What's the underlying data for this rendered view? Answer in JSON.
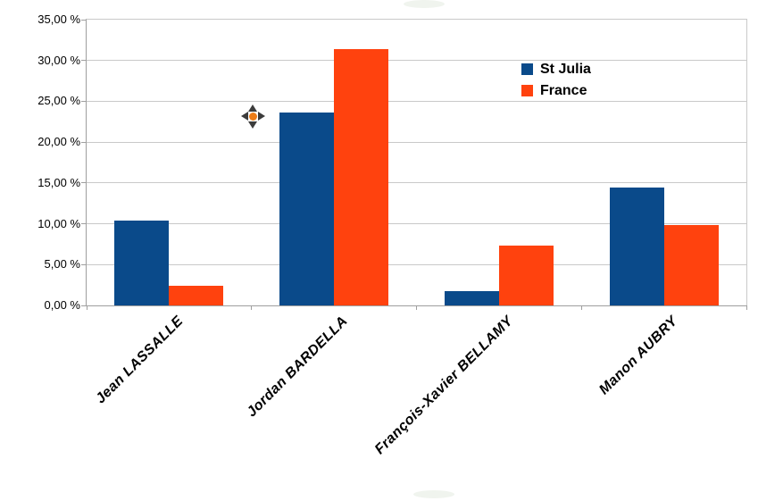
{
  "chart_data": {
    "type": "bar",
    "title": "",
    "xlabel": "",
    "ylabel": "",
    "categories": [
      "Jean LASSALLE",
      "Jordan BARDELLA",
      "François-Xavier BELLAMY",
      "Manon AUBRY"
    ],
    "series": [
      {
        "name": "St Julia",
        "color": "#0a4a8a",
        "values": [
          10.4,
          23.6,
          1.8,
          14.4
        ]
      },
      {
        "name": "France",
        "color": "#ff420e",
        "values": [
          2.4,
          31.4,
          7.3,
          9.9
        ]
      }
    ],
    "ylim": [
      0,
      35
    ],
    "y_tick_step": 5,
    "y_tick_labels": [
      "0,00 %",
      "5,00 %",
      "10,00 %",
      "15,00 %",
      "20,00 %",
      "25,00 %",
      "30,00 %",
      "35,00 %"
    ],
    "grid": true,
    "legend_position": "inside-upper-right",
    "value_unit": "%"
  },
  "cursor": {
    "type": "move-cursor",
    "arrow_color": "#3c3c3c",
    "dot_color": "#ed7d18"
  },
  "colors": {
    "background": "#ffffff",
    "gridline": "#c9c9c9",
    "axis": "#9f9f9f",
    "text": "#000000"
  }
}
